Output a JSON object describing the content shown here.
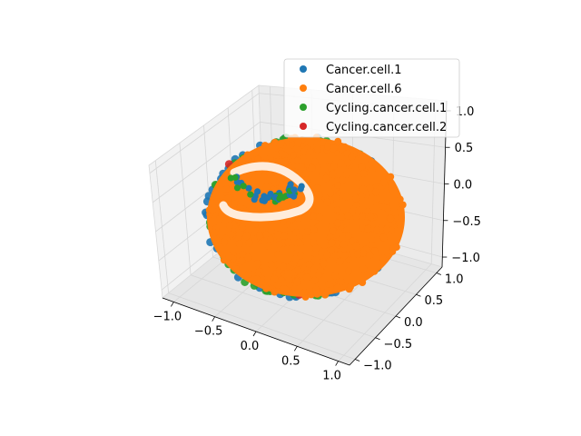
{
  "chart_data": {
    "type": "scatter",
    "projection": "3d",
    "title": "",
    "xlabel": "",
    "ylabel": "",
    "zlabel": "",
    "xlim": [
      -1.0,
      1.0
    ],
    "ylim": [
      -1.0,
      1.0
    ],
    "zlim": [
      -1.0,
      1.0
    ],
    "x_ticks": [
      "−1.0",
      "−0.5",
      "0.0",
      "0.5",
      "1.0"
    ],
    "y_ticks": [
      "−1.0",
      "−0.5",
      "0.0",
      "0.5",
      "1.0"
    ],
    "z_ticks": [
      "−1.0",
      "−0.5",
      "0.0",
      "0.5",
      "1.0"
    ],
    "grid": true,
    "legend_position": "top-right",
    "series": [
      {
        "name": "Cancer.cell.1",
        "color": "#1f77b4",
        "distribution": "points on the unit sphere surface"
      },
      {
        "name": "Cancer.cell.6",
        "color": "#ff7f0e",
        "distribution": "points on the unit sphere surface"
      },
      {
        "name": "Cycling.cancer.cell.1",
        "color": "#2ca02c",
        "distribution": "points on the unit sphere surface"
      },
      {
        "name": "Cycling.cancer.cell.2",
        "color": "#d62728",
        "distribution": "points on the unit sphere surface"
      }
    ]
  }
}
